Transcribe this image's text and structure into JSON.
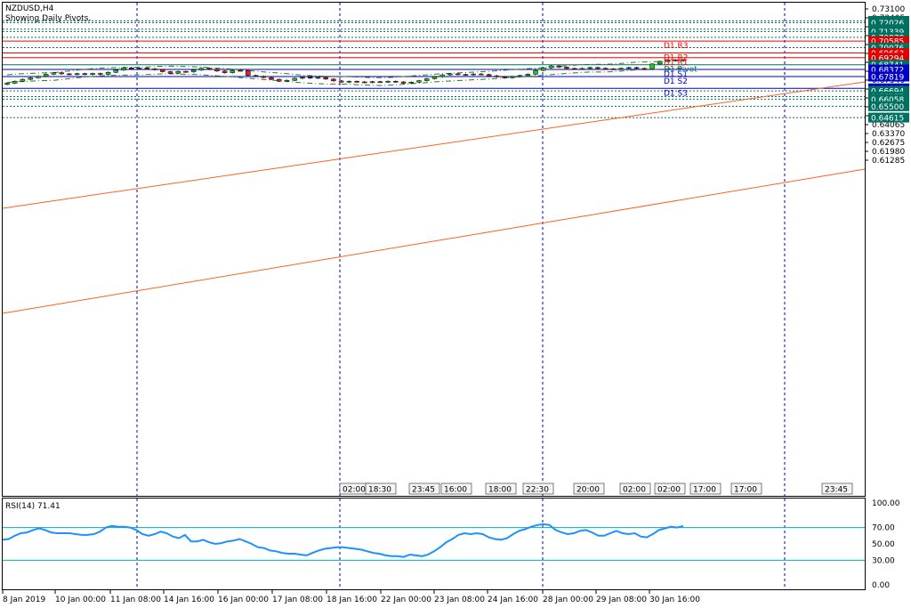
{
  "header": {
    "symbol": "NZDUSD,H4",
    "subtitle": "Showing Daily Pivots."
  },
  "rsi": {
    "label": "RSI(14) 71.41",
    "scale": [
      "100.00",
      "70.00",
      "50.00",
      "30.00",
      "0.00"
    ]
  },
  "colors": {
    "bull": "#1ec81e",
    "bear": "#e8201e",
    "pivot_red": "#ff0000",
    "pivot_blue": "#0000c8",
    "teal": "#007060",
    "trend": "#ff6020",
    "rsi": "#1e90ff"
  },
  "price_scale": [
    "0.73100",
    "0.72405",
    "0.71710",
    "0.71015",
    "0.70320",
    "0.69625",
    "0.68930",
    "0.68235",
    "0.67540",
    "0.66845",
    "0.66150",
    "0.65455",
    "0.64760",
    "0.64065",
    "0.63370",
    "0.62675",
    "0.61980",
    "0.61285"
  ],
  "price_tags": [
    {
      "label": "0.72162",
      "style": "teal"
    },
    {
      "label": "0.72026",
      "style": "teal"
    },
    {
      "label": "0.71516",
      "style": "teal"
    },
    {
      "label": "0.71339",
      "style": "teal"
    },
    {
      "label": "0.70878",
      "style": "teal"
    },
    {
      "label": "0.70585",
      "style": "red"
    },
    {
      "label": "0.70076",
      "style": "teal"
    },
    {
      "label": "0.69663",
      "style": "red"
    },
    {
      "label": "0.69294",
      "style": "red"
    },
    {
      "label": "0.68741",
      "style": "teal"
    },
    {
      "label": "0.68372",
      "style": "blue"
    },
    {
      "label": "0.67819",
      "style": "blue"
    },
    {
      "label": "0.66897",
      "style": "blue"
    },
    {
      "label": "0.66694",
      "style": "teal"
    },
    {
      "label": "0.66255",
      "style": "teal"
    },
    {
      "label": "0.66058",
      "style": "teal"
    },
    {
      "label": "0.65500",
      "style": "teal"
    },
    {
      "label": "0.64615",
      "style": "teal"
    }
  ],
  "pivot_labels": [
    "D1 R3",
    "D1 R2",
    "D1 R1",
    "D1 Pivot",
    "D1 S1",
    "D1 S2",
    "D1 S3"
  ],
  "time_axis": [
    "8 Jan 2019",
    "10 Jan 00:00",
    "11 Jan 08:00",
    "14 Jan 16:00",
    "16 Jan 00:00",
    "17 Jan 08:00",
    "18 Jan 16:00",
    "22 Jan 00:00",
    "23 Jan 08:00",
    "24 Jan 16:00",
    "28 Jan 00:00",
    "29 Jan 08:00",
    "30 Jan 16:00"
  ],
  "session_labels": [
    "02:00",
    "18:30",
    "23:45",
    "16:00",
    "18:00",
    "22:30",
    "20:00",
    "02:00",
    "02:00",
    "17:00",
    "17:00",
    "23:45"
  ],
  "chart_data": {
    "type": "candlestick",
    "candles": [
      {
        "o": 0.672,
        "c": 0.673
      },
      {
        "o": 0.673,
        "c": 0.6745
      },
      {
        "o": 0.6745,
        "c": 0.676
      },
      {
        "o": 0.676,
        "c": 0.6772
      },
      {
        "o": 0.6772,
        "c": 0.6784
      },
      {
        "o": 0.6784,
        "c": 0.68
      },
      {
        "o": 0.68,
        "c": 0.6812
      },
      {
        "o": 0.6812,
        "c": 0.6803
      },
      {
        "o": 0.6803,
        "c": 0.6797
      },
      {
        "o": 0.6797,
        "c": 0.6805
      },
      {
        "o": 0.6805,
        "c": 0.6798
      },
      {
        "o": 0.6798,
        "c": 0.6806
      },
      {
        "o": 0.6806,
        "c": 0.6799
      },
      {
        "o": 0.6799,
        "c": 0.6815
      },
      {
        "o": 0.6815,
        "c": 0.6832
      },
      {
        "o": 0.6832,
        "c": 0.685
      },
      {
        "o": 0.685,
        "c": 0.6843
      },
      {
        "o": 0.6843,
        "c": 0.6848
      },
      {
        "o": 0.6848,
        "c": 0.6842
      },
      {
        "o": 0.6842,
        "c": 0.6835
      },
      {
        "o": 0.6835,
        "c": 0.682
      },
      {
        "o": 0.682,
        "c": 0.6808
      },
      {
        "o": 0.6808,
        "c": 0.6822
      },
      {
        "o": 0.6822,
        "c": 0.6818
      },
      {
        "o": 0.6818,
        "c": 0.6832
      },
      {
        "o": 0.6832,
        "c": 0.6846
      },
      {
        "o": 0.6846,
        "c": 0.6838
      },
      {
        "o": 0.6838,
        "c": 0.6825
      },
      {
        "o": 0.6825,
        "c": 0.6812
      },
      {
        "o": 0.6812,
        "c": 0.683
      },
      {
        "o": 0.683,
        "c": 0.6828
      },
      {
        "o": 0.6828,
        "c": 0.679
      },
      {
        "o": 0.679,
        "c": 0.6784
      },
      {
        "o": 0.6784,
        "c": 0.6774
      },
      {
        "o": 0.6774,
        "c": 0.676
      },
      {
        "o": 0.676,
        "c": 0.6745
      },
      {
        "o": 0.6745,
        "c": 0.6752
      },
      {
        "o": 0.6752,
        "c": 0.6768
      },
      {
        "o": 0.6768,
        "c": 0.6776
      },
      {
        "o": 0.6776,
        "c": 0.677
      },
      {
        "o": 0.677,
        "c": 0.6775
      },
      {
        "o": 0.6775,
        "c": 0.6762
      },
      {
        "o": 0.6762,
        "c": 0.6748
      },
      {
        "o": 0.6748,
        "c": 0.6738
      },
      {
        "o": 0.6738,
        "c": 0.6745
      },
      {
        "o": 0.6745,
        "c": 0.674
      },
      {
        "o": 0.674,
        "c": 0.6735
      },
      {
        "o": 0.6735,
        "c": 0.6742
      },
      {
        "o": 0.6742,
        "c": 0.6738
      },
      {
        "o": 0.6738,
        "c": 0.6745
      },
      {
        "o": 0.6745,
        "c": 0.674
      },
      {
        "o": 0.674,
        "c": 0.673
      },
      {
        "o": 0.673,
        "c": 0.6738
      },
      {
        "o": 0.6738,
        "c": 0.675
      },
      {
        "o": 0.675,
        "c": 0.6765
      },
      {
        "o": 0.6765,
        "c": 0.678
      },
      {
        "o": 0.678,
        "c": 0.6795
      },
      {
        "o": 0.6795,
        "c": 0.6803
      },
      {
        "o": 0.6803,
        "c": 0.6798
      },
      {
        "o": 0.6798,
        "c": 0.6795
      },
      {
        "o": 0.6795,
        "c": 0.6802
      },
      {
        "o": 0.6802,
        "c": 0.6798
      },
      {
        "o": 0.6798,
        "c": 0.6788
      },
      {
        "o": 0.6788,
        "c": 0.678
      },
      {
        "o": 0.678,
        "c": 0.6772
      },
      {
        "o": 0.6772,
        "c": 0.6782
      },
      {
        "o": 0.6782,
        "c": 0.679
      },
      {
        "o": 0.679,
        "c": 0.68
      },
      {
        "o": 0.68,
        "c": 0.683
      },
      {
        "o": 0.683,
        "c": 0.685
      },
      {
        "o": 0.685,
        "c": 0.6865
      },
      {
        "o": 0.6865,
        "c": 0.6855
      },
      {
        "o": 0.6855,
        "c": 0.6845
      },
      {
        "o": 0.6845,
        "c": 0.684
      },
      {
        "o": 0.684,
        "c": 0.6845
      },
      {
        "o": 0.6845,
        "c": 0.6852
      },
      {
        "o": 0.6852,
        "c": 0.6846
      },
      {
        "o": 0.6846,
        "c": 0.6842
      },
      {
        "o": 0.6842,
        "c": 0.6838
      },
      {
        "o": 0.6838,
        "c": 0.6846
      },
      {
        "o": 0.6846,
        "c": 0.6852
      },
      {
        "o": 0.6852,
        "c": 0.6845
      },
      {
        "o": 0.6845,
        "c": 0.684
      },
      {
        "o": 0.684,
        "c": 0.688
      },
      {
        "o": 0.688,
        "c": 0.69
      },
      {
        "o": 0.69,
        "c": 0.6912
      },
      {
        "o": 0.6912,
        "c": 0.6905
      },
      {
        "o": 0.6905,
        "c": 0.6912
      }
    ],
    "pivots": [
      {
        "name": "D1 R3",
        "value": 0.70585
      },
      {
        "name": "D1 R2",
        "value": 0.69663
      },
      {
        "name": "D1 R1",
        "value": 0.69294
      },
      {
        "name": "D1 Pivot",
        "value": 0.68741
      },
      {
        "name": "D1 S1",
        "value": 0.68372
      },
      {
        "name": "D1 S2",
        "value": 0.67819
      },
      {
        "name": "D1 S3",
        "value": 0.66897
      }
    ],
    "levels": [
      0.72162,
      0.72026,
      0.71516,
      0.71339,
      0.70878,
      0.70076,
      0.66694,
      0.66255,
      0.66058,
      0.655,
      0.64615
    ],
    "rsi_values": [
      55,
      56,
      60,
      63,
      64,
      67,
      69,
      67,
      64,
      63,
      63,
      63,
      62,
      61,
      61,
      62,
      65,
      70,
      72,
      71,
      71,
      70,
      67,
      62,
      60,
      62,
      65,
      63,
      59,
      57,
      61,
      53,
      53,
      55,
      52,
      50,
      51,
      53,
      54,
      56,
      53,
      50,
      46,
      45,
      42,
      41,
      39,
      38,
      38,
      37,
      36,
      39,
      42,
      44,
      45,
      46,
      46,
      45,
      44,
      43,
      41,
      39,
      38,
      36,
      35,
      35,
      34,
      37,
      36,
      35,
      37,
      41,
      46,
      52,
      56,
      61,
      63,
      62,
      63,
      62,
      58,
      56,
      55,
      57,
      62,
      66,
      68,
      71,
      73,
      74,
      73,
      67,
      64,
      62,
      63,
      66,
      67,
      64,
      60,
      60,
      63,
      66,
      63,
      62,
      63,
      59,
      58,
      62,
      67,
      69,
      71,
      70,
      72
    ]
  }
}
